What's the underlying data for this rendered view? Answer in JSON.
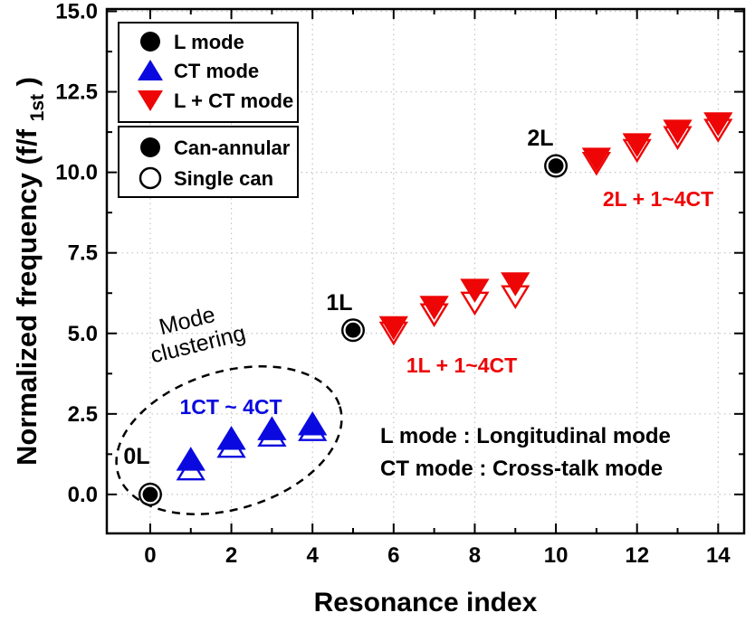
{
  "chart_data": {
    "type": "scatter",
    "title": "",
    "xlabel": "Resonance index",
    "ylabel": {
      "part1": "Normalized frequency (f/f",
      "sub": "1st",
      "part2": ")"
    },
    "xlim": [
      -1.07,
      14.64
    ],
    "ylim": [
      -1.21,
      15.07
    ],
    "x_major_ticks": [
      0,
      2,
      4,
      6,
      8,
      10,
      12,
      14
    ],
    "x_minor_ticks": [
      1,
      3,
      5,
      7,
      9,
      11,
      13
    ],
    "x_tick_labels": [
      "0",
      "2",
      "4",
      "6",
      "8",
      "10",
      "12",
      "14"
    ],
    "y_major_ticks": [
      0,
      2.5,
      5,
      7.5,
      10,
      12.5,
      15
    ],
    "y_minor_ticks": [
      1.25,
      3.75,
      6.25,
      8.75,
      11.25,
      13.75
    ],
    "y_tick_labels": [
      "0.0",
      "2.5",
      "5.0",
      "7.5",
      "10.0",
      "12.5",
      "15.0"
    ],
    "grid": "dotted",
    "legend_position": "upper-left",
    "colors": {
      "l_mode": "#000000",
      "ct_mode": "#0a0ae0",
      "l_ct_mode": "#ee0505",
      "grid": "#c3c3c3"
    },
    "series": [
      {
        "name": "L mode (can-annular)",
        "marker": "circle",
        "style": "filled",
        "color": "#000000",
        "points": [
          [
            0,
            0.0
          ],
          [
            5,
            5.1
          ],
          [
            10,
            10.2
          ]
        ]
      },
      {
        "name": "CT mode (single can)",
        "marker": "triangle-up",
        "style": "open",
        "color": "#0a0ae0",
        "points": [
          [
            1,
            0.75
          ],
          [
            2,
            1.45
          ],
          [
            3,
            1.8
          ],
          [
            4,
            1.97
          ]
        ]
      },
      {
        "name": "CT mode (can-annular)",
        "marker": "triangle-up",
        "style": "filled",
        "color": "#0a0ae0",
        "points": [
          [
            1,
            1.05
          ],
          [
            2,
            1.7
          ],
          [
            3,
            2.0
          ],
          [
            4,
            2.15
          ]
        ]
      },
      {
        "name": "L + CT mode (single can)",
        "marker": "triangle-down",
        "style": "open",
        "color": "#ee0505",
        "points": [
          [
            6,
            5.05
          ],
          [
            7,
            5.62
          ],
          [
            8,
            5.98
          ],
          [
            9,
            6.18
          ],
          [
            11,
            10.32
          ],
          [
            12,
            10.72
          ],
          [
            13,
            11.12
          ],
          [
            14,
            11.35
          ]
        ]
      },
      {
        "name": "L + CT mode (can-annular)",
        "marker": "triangle-down",
        "style": "filled",
        "color": "#ee0505",
        "points": [
          [
            6,
            5.22
          ],
          [
            7,
            5.85
          ],
          [
            8,
            6.38
          ],
          [
            9,
            6.58
          ],
          [
            11,
            10.45
          ],
          [
            12,
            10.9
          ],
          [
            13,
            11.32
          ],
          [
            14,
            11.55
          ]
        ]
      }
    ]
  },
  "legend_modes": {
    "items": [
      {
        "label": "L mode"
      },
      {
        "label": "CT mode"
      },
      {
        "label": "L + CT mode"
      }
    ]
  },
  "legend_can": {
    "items": [
      {
        "label": "Can-annular"
      },
      {
        "label": "Single can"
      }
    ]
  },
  "annotations": {
    "zero_l": "0L",
    "one_l": "1L",
    "two_l": "2L",
    "ct_cluster": "1CT ~ 4CT",
    "one_l_ct": "1L + 1~4CT",
    "two_l_ct": "2L + 1~4CT",
    "mode_clustering_line1": "Mode",
    "mode_clustering_line2": "clustering",
    "l_mode_note": "L mode : Longitudinal mode",
    "ct_mode_note": "CT mode : Cross-talk mode"
  }
}
